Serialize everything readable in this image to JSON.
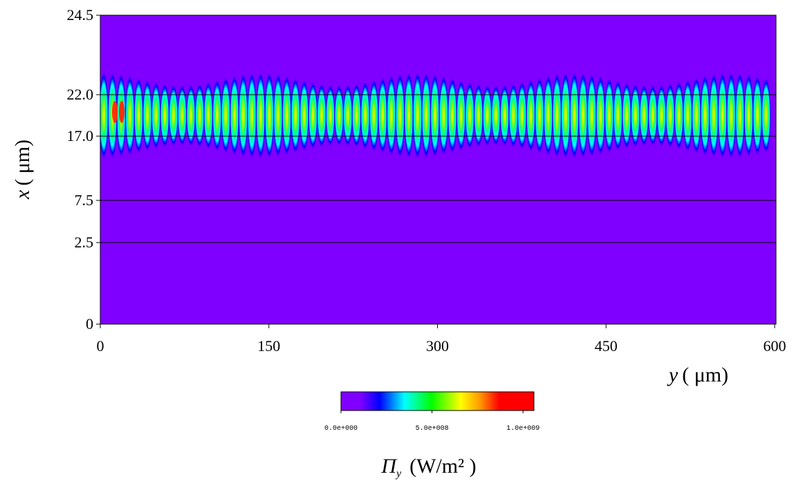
{
  "chart_data": {
    "type": "heatmap",
    "x_label": {
      "variable": "y",
      "unit": "( μm)"
    },
    "y_label": {
      "variable": "x",
      "unit": "( μm)"
    },
    "xlim": [
      0,
      600
    ],
    "xticks": [
      0,
      150,
      300,
      450,
      600
    ],
    "ylim": [
      0,
      24.5
    ],
    "yticks": [
      0,
      2.5,
      7.5,
      {
        "value": 17,
        "label": "17.0"
      },
      {
        "value": 22,
        "label": "22.0"
      },
      24.5
    ],
    "grid": true,
    "colorbar": {
      "symbol": "Π",
      "subscript": "y",
      "unit": "(W/m² )",
      "lim": [
        0,
        1060000000
      ],
      "ticks": [
        {
          "value": 0,
          "label": "0.0e+000"
        },
        {
          "value": 500000000,
          "label": "5.0e+008"
        },
        {
          "value": 1000000000,
          "label": "1.0e+009"
        }
      ]
    }
  }
}
